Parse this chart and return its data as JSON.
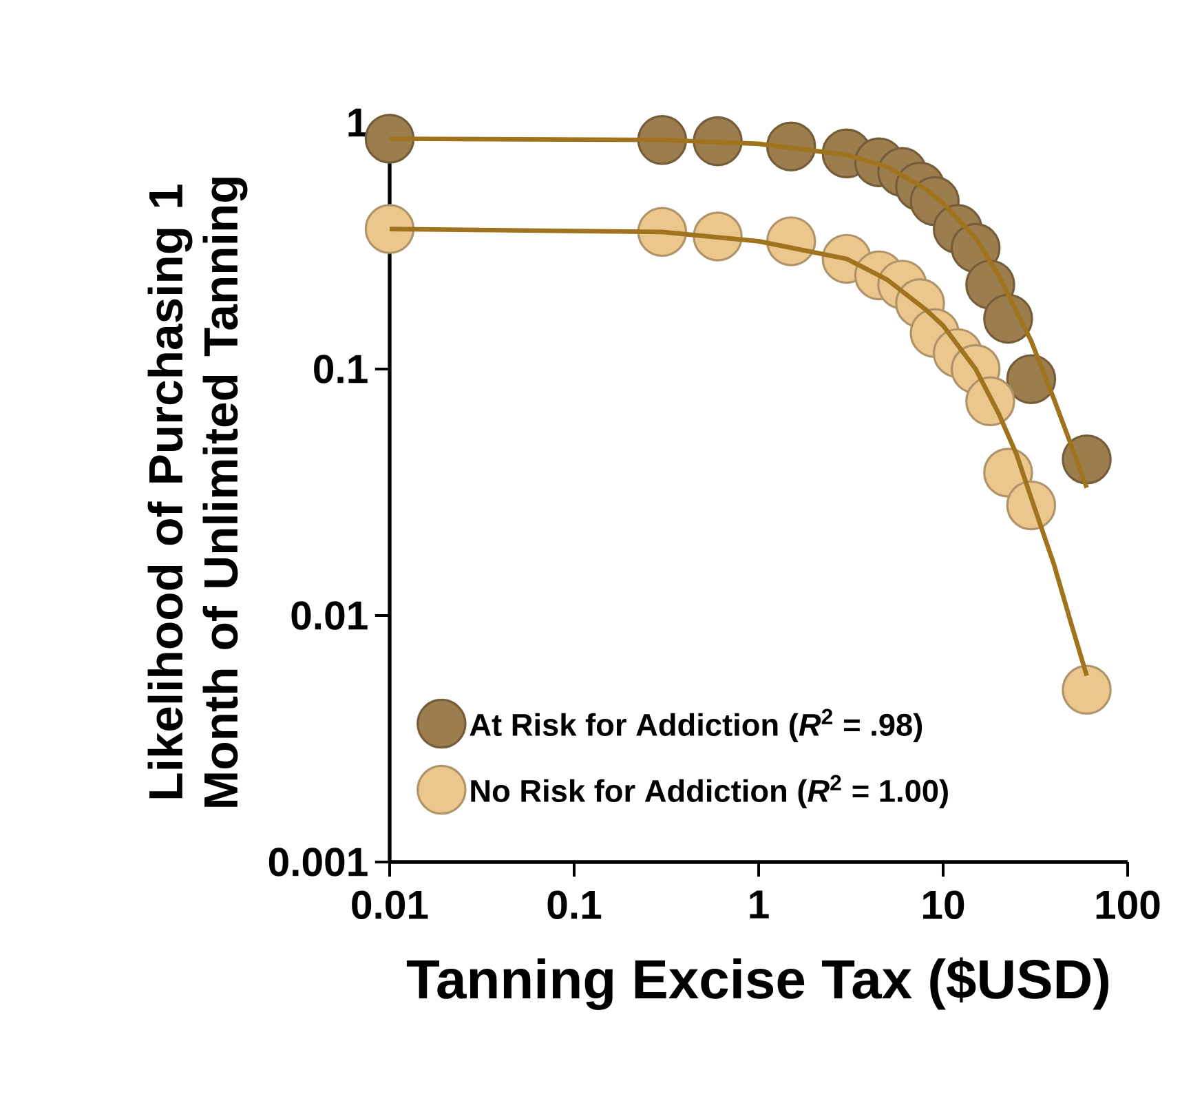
{
  "chart_data": {
    "type": "scatter",
    "xlabel": "Tanning Excise Tax  ($USD)",
    "ylabel": "Likelihood of Purchasing 1 Month of Unlimited Tanning",
    "log": "xy",
    "legend": "bottom left",
    "xlim": [
      0.01,
      100
    ],
    "ylim": [
      0.001,
      1
    ],
    "xticks": [
      0.01,
      0.1,
      1,
      10,
      100
    ],
    "yticks": [
      0.001,
      0.01,
      0.1,
      1
    ],
    "series": [
      {
        "name": "At Risk for Addiction (*R*$^{2}$ = .98)",
        "marker": "circle",
        "color": "#9c7d4e",
        "x": [
          0.01,
          0.3,
          0.6,
          1.5,
          3,
          4.5,
          6,
          7.5,
          9,
          12,
          15,
          18,
          22.5,
          30,
          60
        ],
        "values": [
          0.86,
          0.85,
          0.84,
          0.8,
          0.75,
          0.69,
          0.63,
          0.55,
          0.48,
          0.37,
          0.31,
          0.22,
          0.16,
          0.091,
          0.043
        ]
      },
      {
        "name": "No Risk for Addiction (*R*$^{2}$ = 1.00)",
        "marker": "circle",
        "color": "#ebc68d",
        "x": [
          0.01,
          0.3,
          0.6,
          1.5,
          3,
          4.5,
          6,
          7.5,
          9,
          12,
          15,
          18,
          22.5,
          30,
          60
        ],
        "values": [
          0.37,
          0.36,
          0.345,
          0.33,
          0.28,
          0.24,
          0.22,
          0.185,
          0.14,
          0.116,
          0.1,
          0.074,
          0.038,
          0.028,
          0.005
        ]
      },
      {
        "type": "line",
        "marker": "none",
        "color": "#a0741f",
        "x": [
          0.01,
          0.3,
          1,
          3,
          5,
          8,
          10,
          15,
          20,
          30,
          40,
          50,
          60
        ],
        "values": [
          0.86,
          0.85,
          0.82,
          0.74,
          0.66,
          0.54,
          0.47,
          0.34,
          0.24,
          0.13,
          0.075,
          0.048,
          0.033
        ]
      },
      {
        "type": "line",
        "marker": "none",
        "color": "#a0741f",
        "x": [
          0.01,
          0.3,
          1,
          3,
          5,
          8,
          10,
          15,
          20,
          25,
          30,
          40,
          50,
          60
        ],
        "values": [
          0.37,
          0.36,
          0.33,
          0.28,
          0.23,
          0.175,
          0.15,
          0.1,
          0.066,
          0.045,
          0.03,
          0.016,
          0.009,
          0.0057
        ]
      }
    ]
  }
}
